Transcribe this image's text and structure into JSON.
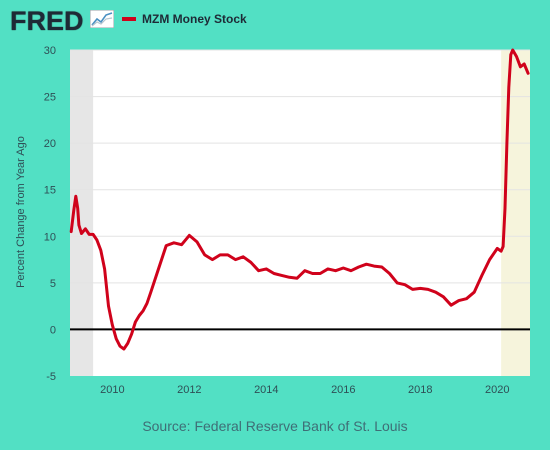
{
  "brand": {
    "logo_text": "FRED",
    "logo_icon": "chart-line-icon"
  },
  "legend": {
    "label": "MZM Money Stock",
    "color": "#d0021b"
  },
  "source": "Source: Federal Reserve Bank of St. Louis",
  "chart_data": {
    "type": "line",
    "title": "",
    "xlabel": "",
    "ylabel": "Percent Change from Year Ago",
    "xlim": [
      2008.9,
      2020.85
    ],
    "ylim": [
      -5,
      30
    ],
    "y_ticks": [
      -5,
      0,
      5,
      10,
      15,
      20,
      25,
      30
    ],
    "x_ticks": [
      2010,
      2012,
      2014,
      2016,
      2018,
      2020
    ],
    "grid": true,
    "recessions": [
      [
        2008.9,
        2009.5
      ],
      [
        2020.1,
        2020.85
      ]
    ],
    "recession_colors": [
      "#e6e6e6",
      "#f6f4dc"
    ],
    "zero_line": true,
    "series": [
      {
        "name": "MZM Money Stock",
        "color": "#d0021b",
        "x": [
          2008.93,
          2009.0,
          2009.05,
          2009.1,
          2009.13,
          2009.2,
          2009.3,
          2009.4,
          2009.5,
          2009.6,
          2009.7,
          2009.8,
          2009.9,
          2010.0,
          2010.1,
          2010.2,
          2010.3,
          2010.4,
          2010.5,
          2010.6,
          2010.7,
          2010.8,
          2010.9,
          2011.0,
          2011.2,
          2011.4,
          2011.6,
          2011.8,
          2012.0,
          2012.2,
          2012.4,
          2012.6,
          2012.8,
          2013.0,
          2013.2,
          2013.4,
          2013.6,
          2013.8,
          2014.0,
          2014.2,
          2014.4,
          2014.6,
          2014.8,
          2015.0,
          2015.2,
          2015.4,
          2015.6,
          2015.8,
          2016.0,
          2016.2,
          2016.4,
          2016.6,
          2016.8,
          2017.0,
          2017.2,
          2017.4,
          2017.6,
          2017.8,
          2018.0,
          2018.2,
          2018.4,
          2018.6,
          2018.8,
          2019.0,
          2019.2,
          2019.4,
          2019.6,
          2019.8,
          2020.0,
          2020.1,
          2020.15,
          2020.2,
          2020.25,
          2020.3,
          2020.35,
          2020.4,
          2020.5,
          2020.6,
          2020.7,
          2020.8
        ],
        "values": [
          10.5,
          12.8,
          14.3,
          13.0,
          11.2,
          10.3,
          10.8,
          10.2,
          10.2,
          9.6,
          8.5,
          6.5,
          2.5,
          0.5,
          -1.0,
          -1.8,
          -2.1,
          -1.5,
          -0.5,
          0.8,
          1.5,
          2.0,
          2.8,
          4.0,
          6.5,
          9.0,
          9.3,
          9.1,
          10.1,
          9.4,
          8.0,
          7.5,
          8.0,
          8.0,
          7.5,
          7.8,
          7.2,
          6.3,
          6.5,
          6.0,
          5.8,
          5.6,
          5.5,
          6.3,
          6.0,
          6.0,
          6.5,
          6.3,
          6.6,
          6.3,
          6.7,
          7.0,
          6.8,
          6.7,
          6.0,
          5.0,
          4.8,
          4.3,
          4.4,
          4.3,
          4.0,
          3.5,
          2.6,
          3.1,
          3.3,
          4.0,
          5.8,
          7.5,
          8.7,
          8.4,
          8.9,
          13.0,
          20.0,
          26.0,
          29.5,
          30.0,
          29.3,
          28.2,
          28.5,
          27.5
        ]
      }
    ]
  }
}
